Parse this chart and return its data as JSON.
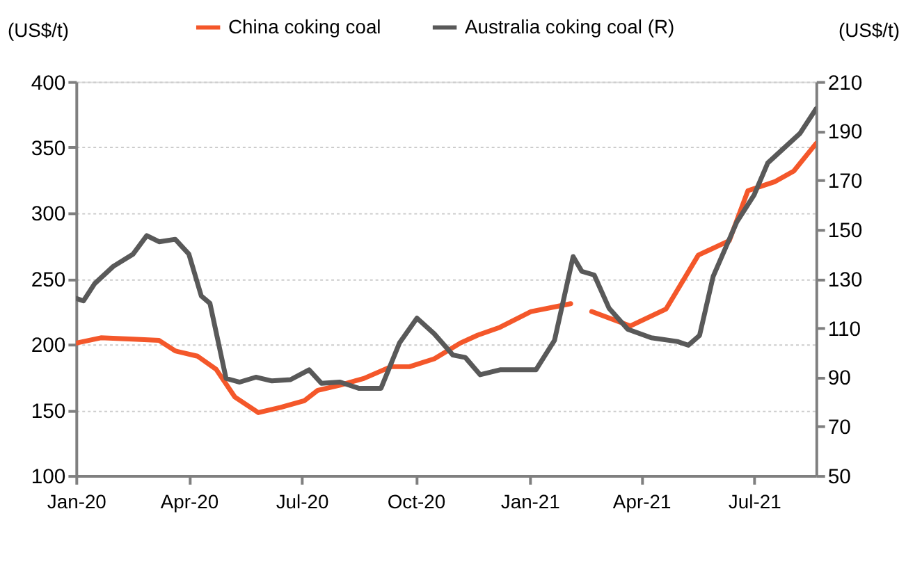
{
  "chart_data": {
    "type": "line",
    "ylabel": "(US$/t)",
    "y2label": "(US$/t)",
    "x": [
      "2020-01-01",
      "2020-01-21",
      "2020-02-16",
      "2020-03-08",
      "2020-03-21",
      "2020-04-08",
      "2020-04-23",
      "2020-05-08",
      "2020-05-27",
      "2020-06-14",
      "2020-07-03",
      "2020-07-14",
      "2020-08-01",
      "2020-08-20",
      "2020-09-11",
      "2020-09-26",
      "2020-10-16",
      "2020-11-06",
      "2020-11-20",
      "2020-12-08",
      "2021-01-02",
      "2021-02-03",
      "2021-02-12",
      "2021-02-20",
      "2021-03-23",
      "2021-04-21",
      "2021-05-17",
      "2021-06-11",
      "2021-06-26",
      "2021-07-18",
      "2021-08-02",
      "2021-08-20"
    ],
    "series": [
      {
        "name": "China coking coal",
        "color": "#f4572a",
        "values": [
          201,
          205,
          204,
          203,
          195,
          191,
          181,
          160,
          148,
          152,
          157,
          165,
          169,
          174,
          183,
          183,
          189,
          201,
          207,
          213,
          225,
          231,
          null,
          225,
          214,
          227,
          268,
          279,
          317,
          324,
          332,
          353
        ]
      },
      {
        "name": "Australia coking coal (R)",
        "color": "#595959",
        "axis": "y2",
        "x": [
          "2020-01-01",
          "2020-01-07",
          "2020-01-16",
          "2020-01-31",
          "2020-02-16",
          "2020-02-27",
          "2020-03-08",
          "2020-03-21",
          "2020-04-01",
          "2020-04-11",
          "2020-04-18",
          "2020-05-01",
          "2020-05-12",
          "2020-05-25",
          "2020-06-07",
          "2020-06-22",
          "2020-07-07",
          "2020-07-17",
          "2020-08-01",
          "2020-08-16",
          "2020-09-03",
          "2020-09-18",
          "2020-10-02",
          "2020-10-16",
          "2020-10-31",
          "2020-11-10",
          "2020-11-22",
          "2020-12-08",
          "2021-01-06",
          "2021-01-21",
          "2021-02-05",
          "2021-02-12",
          "2021-02-22",
          "2021-03-06",
          "2021-03-21",
          "2021-04-09",
          "2021-04-30",
          "2021-05-09",
          "2021-05-18",
          "2021-05-29",
          "2021-06-17",
          "2021-07-01",
          "2021-07-12",
          "2021-08-07",
          "2021-08-20"
        ],
        "values": [
          122,
          121,
          128,
          135,
          140,
          147.5,
          145,
          146,
          140,
          123,
          120,
          89.5,
          88,
          90,
          88.5,
          89,
          93,
          87.5,
          88,
          85.5,
          85.5,
          104,
          114,
          107.6,
          99,
          98,
          91,
          93,
          93,
          105,
          139,
          133,
          131.5,
          118,
          109.5,
          106,
          104.5,
          103,
          107,
          131,
          153,
          164,
          177,
          189,
          199
        ]
      }
    ],
    "xlim": [
      "2020-01-01",
      "2021-08-20"
    ],
    "xticks": [
      {
        "value": "2020-01-01",
        "label": "Jan-20"
      },
      {
        "value": "2020-04-01",
        "label": "Apr-20"
      },
      {
        "value": "2020-07-01",
        "label": "Jul-20"
      },
      {
        "value": "2020-10-01",
        "label": "Oct-20"
      },
      {
        "value": "2021-01-01",
        "label": "Jan-21"
      },
      {
        "value": "2021-04-01",
        "label": "Apr-21"
      },
      {
        "value": "2021-07-01",
        "label": "Jul-21"
      }
    ],
    "ylim": [
      100,
      400
    ],
    "yticks": [
      100,
      150,
      200,
      250,
      300,
      350,
      400
    ],
    "y2lim": [
      50,
      210
    ],
    "y2ticks": [
      50,
      70,
      90,
      110,
      130,
      150,
      170,
      190,
      210
    ],
    "grid": "y",
    "legend": "top",
    "line_style": "solid",
    "marker": "none"
  }
}
